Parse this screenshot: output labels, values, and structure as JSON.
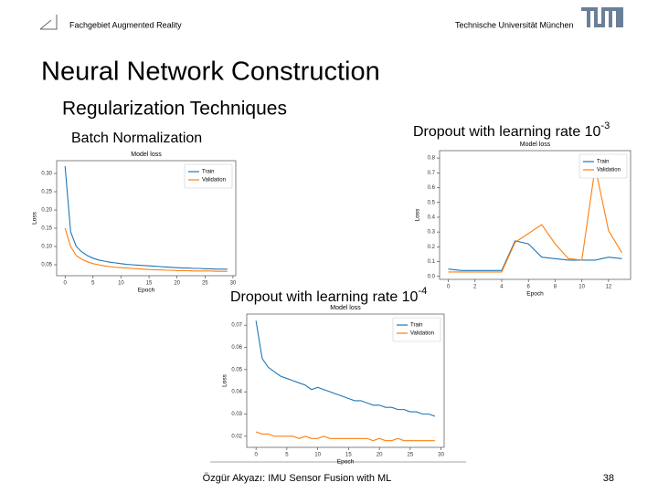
{
  "header": {
    "left": "Fachgebiet Augmented Reality",
    "right": "Technische Universität München"
  },
  "title": "Neural Network Construction",
  "subtitle": "Regularization Techniques",
  "footer": {
    "author": "Özgür Akyazı: IMU Sensor Fusion with ML",
    "page": "38"
  },
  "chart_data": [
    {
      "type": "line",
      "caption": "Batch Normalization",
      "title": "Model loss",
      "xlabel": "Epoch",
      "ylabel": "Loss",
      "xlim": [
        -1.5,
        30.5
      ],
      "xticks": [
        0,
        5,
        10,
        15,
        20,
        25,
        30
      ],
      "ylim": [
        0.02,
        0.335
      ],
      "yticks": [
        0.05,
        {
          "value": 0.1,
          "label": "0.10"
        },
        0.15,
        {
          "value": 0.2,
          "label": "0.20"
        },
        0.25,
        {
          "value": 0.3,
          "label": "0.30"
        }
      ],
      "legend": "upper right",
      "series": [
        {
          "name": "Train",
          "color": "#1f77b4",
          "values": [
            0.32,
            0.14,
            0.1,
            0.085,
            0.075,
            0.068,
            0.063,
            0.06,
            0.057,
            0.055,
            0.053,
            0.051,
            0.05,
            0.049,
            0.048,
            0.047,
            0.046,
            0.045,
            0.044,
            0.043,
            0.042,
            0.041,
            0.041,
            0.04,
            0.04,
            0.039,
            0.039,
            0.038,
            0.038,
            0.038
          ]
        },
        {
          "name": "Validation",
          "color": "#ff7f0e",
          "values": [
            0.15,
            0.1,
            0.075,
            0.065,
            0.058,
            0.053,
            0.05,
            0.047,
            0.045,
            0.043,
            0.042,
            0.041,
            0.04,
            0.039,
            0.038,
            0.037,
            0.036,
            0.036,
            0.035,
            0.035,
            0.034,
            0.034,
            0.034,
            0.033,
            0.033,
            0.033,
            0.033,
            0.032,
            0.032,
            0.032
          ]
        }
      ]
    },
    {
      "type": "line",
      "caption": "Dropout with learning rate 10",
      "caption_exponent": "-3",
      "title": "Model loss",
      "xlabel": "Epoch",
      "ylabel": "Loss",
      "xlim": [
        -0.65,
        13.65
      ],
      "xticks": [
        0,
        2,
        4,
        6,
        8,
        10,
        12
      ],
      "ylim": [
        -0.02,
        0.85
      ],
      "yticks": [
        {
          "value": 0,
          "label": "0.0"
        },
        0.1,
        0.2,
        0.3,
        0.4,
        0.5,
        0.6,
        0.7,
        0.8
      ],
      "legend": "upper right",
      "series": [
        {
          "name": "Train",
          "color": "#1f77b4",
          "values": [
            0.05,
            0.04,
            0.04,
            0.04,
            0.04,
            0.24,
            0.22,
            0.13,
            0.12,
            0.11,
            0.11,
            0.11,
            0.13,
            0.12
          ]
        },
        {
          "name": "Validation",
          "color": "#ff7f0e",
          "values": [
            0.03,
            0.03,
            0.03,
            0.03,
            0.03,
            0.23,
            0.29,
            0.35,
            0.22,
            0.12,
            0.11,
            0.74,
            0.31,
            0.16
          ]
        }
      ]
    },
    {
      "type": "line",
      "caption": "Dropout with learning rate 10",
      "caption_exponent": "-4",
      "title": "Model loss",
      "xlabel": "Epoch",
      "ylabel": "Loss",
      "xlim": [
        -1.5,
        30.5
      ],
      "xticks": [
        0,
        5,
        10,
        15,
        20,
        25,
        30
      ],
      "ylim": [
        0.015,
        0.075
      ],
      "yticks": [
        0.02,
        0.03,
        0.04,
        0.05,
        0.06,
        0.07
      ],
      "legend": "upper right",
      "series": [
        {
          "name": "Train",
          "color": "#1f77b4",
          "values": [
            0.072,
            0.055,
            0.051,
            0.049,
            0.047,
            0.046,
            0.045,
            0.044,
            0.043,
            0.041,
            0.042,
            0.041,
            0.04,
            0.039,
            0.038,
            0.037,
            0.036,
            0.036,
            0.035,
            0.034,
            0.034,
            0.033,
            0.033,
            0.032,
            0.032,
            0.031,
            0.031,
            0.03,
            0.03,
            0.029
          ]
        },
        {
          "name": "Validation",
          "color": "#ff7f0e",
          "values": [
            0.022,
            0.021,
            0.021,
            0.02,
            0.02,
            0.02,
            0.02,
            0.019,
            0.02,
            0.019,
            0.019,
            0.02,
            0.019,
            0.019,
            0.019,
            0.019,
            0.019,
            0.019,
            0.019,
            0.018,
            0.019,
            0.018,
            0.018,
            0.019,
            0.018,
            0.018,
            0.018,
            0.018,
            0.018,
            0.018
          ]
        }
      ]
    }
  ]
}
